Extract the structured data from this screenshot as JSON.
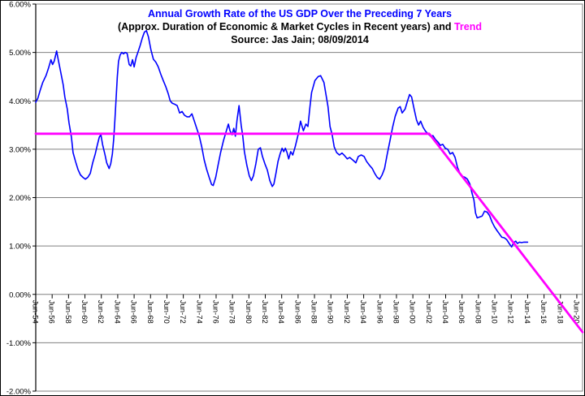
{
  "chart_data": {
    "type": "line",
    "title": "Annual Growth Rate of the US GDP Over the Preceding 7 Years",
    "subtitle_prefix": "(Approx. Duration of Economic & Market Cycles in Recent years) and ",
    "subtitle_highlight": "Trend",
    "source_line": "Source: Jas Jain; 08/09/2014",
    "title_color": "#0000ff",
    "highlight_color": "#ff00ff",
    "grid_color": "#808080",
    "axis_color": "#000000",
    "background_color": "#ffffff",
    "xlabel": "",
    "ylabel": "",
    "xlim": [
      1954.45,
      2021.15
    ],
    "ylim": [
      -2,
      6
    ],
    "legend": "none",
    "grid": "horizontal",
    "y_ticks": [
      {
        "label": "6.00%",
        "value": 6
      },
      {
        "label": "5.00%",
        "value": 5
      },
      {
        "label": "4.00%",
        "value": 4
      },
      {
        "label": "3.00%",
        "value": 3
      },
      {
        "label": "2.00%",
        "value": 2
      },
      {
        "label": "1.00%",
        "value": 1
      },
      {
        "label": "0.00%",
        "value": 0
      },
      {
        "label": "-1.00%",
        "value": -1
      },
      {
        "label": "-2.00%",
        "value": -2
      }
    ],
    "x_ticks": [
      {
        "label": "Jun-54",
        "year": 1954.45
      },
      {
        "label": "Jun-56",
        "year": 1956.45
      },
      {
        "label": "Jun-58",
        "year": 1958.45
      },
      {
        "label": "Jun-60",
        "year": 1960.45
      },
      {
        "label": "Jun-62",
        "year": 1962.45
      },
      {
        "label": "Jun-64",
        "year": 1964.45
      },
      {
        "label": "Jun-66",
        "year": 1966.45
      },
      {
        "label": "Jun-68",
        "year": 1968.45
      },
      {
        "label": "Jun-70",
        "year": 1970.45
      },
      {
        "label": "Jun-72",
        "year": 1972.45
      },
      {
        "label": "Jun-74",
        "year": 1974.45
      },
      {
        "label": "Jun-76",
        "year": 1976.45
      },
      {
        "label": "Jun-78",
        "year": 1978.45
      },
      {
        "label": "Jun-80",
        "year": 1980.45
      },
      {
        "label": "Jun-82",
        "year": 1982.45
      },
      {
        "label": "Jun-84",
        "year": 1984.45
      },
      {
        "label": "Jun-86",
        "year": 1986.45
      },
      {
        "label": "Jun-88",
        "year": 1988.45
      },
      {
        "label": "Jun-90",
        "year": 1990.45
      },
      {
        "label": "Jun-92",
        "year": 1992.45
      },
      {
        "label": "Jun-94",
        "year": 1994.45
      },
      {
        "label": "Jun-96",
        "year": 1996.45
      },
      {
        "label": "Jun-98",
        "year": 1998.45
      },
      {
        "label": "Jun-00",
        "year": 2000.45
      },
      {
        "label": "Jun-02",
        "year": 2002.45
      },
      {
        "label": "Jun-04",
        "year": 2004.45
      },
      {
        "label": "Jun-06",
        "year": 2006.45
      },
      {
        "label": "Jun-08",
        "year": 2008.45
      },
      {
        "label": "Jun-10",
        "year": 2010.45
      },
      {
        "label": "Jun-12",
        "year": 2012.45
      },
      {
        "label": "Jun-14",
        "year": 2014.45
      },
      {
        "label": "Jun-16",
        "year": 2016.45
      },
      {
        "label": "Jun-18",
        "year": 2018.45
      },
      {
        "label": "Jun-20",
        "year": 2020.45
      }
    ],
    "series": [
      {
        "name": "gdp-growth",
        "label": "Annual Growth Rate of the US GDP Over the Preceding 7 Years",
        "color": "#0000ff",
        "width": 1.6,
        "points": [
          [
            1954.45,
            3.97
          ],
          [
            1954.7,
            4.05
          ],
          [
            1955.0,
            4.22
          ],
          [
            1955.3,
            4.38
          ],
          [
            1955.7,
            4.52
          ],
          [
            1956.0,
            4.67
          ],
          [
            1956.3,
            4.85
          ],
          [
            1956.5,
            4.75
          ],
          [
            1956.7,
            4.82
          ],
          [
            1957.0,
            5.03
          ],
          [
            1957.2,
            4.85
          ],
          [
            1957.45,
            4.63
          ],
          [
            1957.8,
            4.33
          ],
          [
            1958.0,
            4.08
          ],
          [
            1958.3,
            3.83
          ],
          [
            1958.5,
            3.55
          ],
          [
            1958.8,
            3.25
          ],
          [
            1959.0,
            2.93
          ],
          [
            1959.3,
            2.75
          ],
          [
            1959.6,
            2.58
          ],
          [
            1959.9,
            2.47
          ],
          [
            1960.2,
            2.42
          ],
          [
            1960.5,
            2.38
          ],
          [
            1960.8,
            2.42
          ],
          [
            1961.1,
            2.5
          ],
          [
            1961.4,
            2.72
          ],
          [
            1961.7,
            2.9
          ],
          [
            1961.95,
            3.08
          ],
          [
            1962.2,
            3.25
          ],
          [
            1962.4,
            3.3
          ],
          [
            1962.6,
            3.1
          ],
          [
            1962.9,
            2.88
          ],
          [
            1963.1,
            2.72
          ],
          [
            1963.4,
            2.6
          ],
          [
            1963.6,
            2.7
          ],
          [
            1963.8,
            2.9
          ],
          [
            1963.95,
            3.2
          ],
          [
            1964.1,
            3.6
          ],
          [
            1964.25,
            4.05
          ],
          [
            1964.4,
            4.5
          ],
          [
            1964.55,
            4.82
          ],
          [
            1964.75,
            4.95
          ],
          [
            1964.95,
            5.0
          ],
          [
            1965.15,
            4.97
          ],
          [
            1965.35,
            5.0
          ],
          [
            1965.6,
            4.98
          ],
          [
            1965.85,
            4.75
          ],
          [
            1966.05,
            4.72
          ],
          [
            1966.25,
            4.85
          ],
          [
            1966.45,
            4.7
          ],
          [
            1966.7,
            4.9
          ],
          [
            1966.95,
            5.02
          ],
          [
            1967.2,
            5.15
          ],
          [
            1967.45,
            5.3
          ],
          [
            1967.7,
            5.42
          ],
          [
            1967.95,
            5.45
          ],
          [
            1968.2,
            5.32
          ],
          [
            1968.5,
            5.05
          ],
          [
            1968.8,
            4.86
          ],
          [
            1969.1,
            4.8
          ],
          [
            1969.4,
            4.7
          ],
          [
            1969.7,
            4.55
          ],
          [
            1970.0,
            4.42
          ],
          [
            1970.3,
            4.3
          ],
          [
            1970.6,
            4.15
          ],
          [
            1970.85,
            4.0
          ],
          [
            1971.1,
            3.95
          ],
          [
            1971.4,
            3.93
          ],
          [
            1971.7,
            3.9
          ],
          [
            1972.0,
            3.75
          ],
          [
            1972.3,
            3.78
          ],
          [
            1972.6,
            3.7
          ],
          [
            1972.9,
            3.67
          ],
          [
            1973.2,
            3.67
          ],
          [
            1973.5,
            3.73
          ],
          [
            1973.8,
            3.58
          ],
          [
            1974.1,
            3.42
          ],
          [
            1974.4,
            3.27
          ],
          [
            1974.7,
            3.05
          ],
          [
            1975.0,
            2.78
          ],
          [
            1975.3,
            2.58
          ],
          [
            1975.6,
            2.42
          ],
          [
            1975.9,
            2.27
          ],
          [
            1976.1,
            2.25
          ],
          [
            1976.4,
            2.42
          ],
          [
            1976.7,
            2.68
          ],
          [
            1977.0,
            2.93
          ],
          [
            1977.35,
            3.18
          ],
          [
            1977.7,
            3.38
          ],
          [
            1977.95,
            3.52
          ],
          [
            1978.15,
            3.38
          ],
          [
            1978.4,
            3.3
          ],
          [
            1978.6,
            3.43
          ],
          [
            1978.8,
            3.27
          ],
          [
            1979.0,
            3.6
          ],
          [
            1979.25,
            3.9
          ],
          [
            1979.5,
            3.5
          ],
          [
            1979.7,
            3.27
          ],
          [
            1979.9,
            2.95
          ],
          [
            1980.2,
            2.67
          ],
          [
            1980.5,
            2.45
          ],
          [
            1980.75,
            2.35
          ],
          [
            1981.0,
            2.45
          ],
          [
            1981.3,
            2.7
          ],
          [
            1981.6,
            3.0
          ],
          [
            1981.85,
            3.03
          ],
          [
            1982.1,
            2.85
          ],
          [
            1982.4,
            2.7
          ],
          [
            1982.7,
            2.57
          ],
          [
            1983.0,
            2.35
          ],
          [
            1983.3,
            2.23
          ],
          [
            1983.5,
            2.28
          ],
          [
            1983.75,
            2.5
          ],
          [
            1984.0,
            2.75
          ],
          [
            1984.25,
            2.9
          ],
          [
            1984.5,
            3.02
          ],
          [
            1984.7,
            2.95
          ],
          [
            1984.9,
            3.02
          ],
          [
            1985.1,
            2.93
          ],
          [
            1985.3,
            2.8
          ],
          [
            1985.55,
            2.95
          ],
          [
            1985.8,
            2.88
          ],
          [
            1986.1,
            3.05
          ],
          [
            1986.45,
            3.3
          ],
          [
            1986.75,
            3.58
          ],
          [
            1987.1,
            3.38
          ],
          [
            1987.4,
            3.52
          ],
          [
            1987.65,
            3.47
          ],
          [
            1987.9,
            3.88
          ],
          [
            1988.1,
            4.17
          ],
          [
            1988.5,
            4.42
          ],
          [
            1988.9,
            4.5
          ],
          [
            1989.2,
            4.52
          ],
          [
            1989.6,
            4.38
          ],
          [
            1989.9,
            4.08
          ],
          [
            1990.1,
            3.88
          ],
          [
            1990.35,
            3.47
          ],
          [
            1990.6,
            3.3
          ],
          [
            1990.85,
            3.05
          ],
          [
            1991.15,
            2.93
          ],
          [
            1991.5,
            2.88
          ],
          [
            1991.8,
            2.92
          ],
          [
            1992.1,
            2.87
          ],
          [
            1992.45,
            2.8
          ],
          [
            1992.75,
            2.83
          ],
          [
            1993.1,
            2.78
          ],
          [
            1993.5,
            2.72
          ],
          [
            1993.8,
            2.85
          ],
          [
            1994.15,
            2.88
          ],
          [
            1994.5,
            2.85
          ],
          [
            1994.8,
            2.75
          ],
          [
            1995.15,
            2.67
          ],
          [
            1995.5,
            2.6
          ],
          [
            1995.8,
            2.5
          ],
          [
            1996.1,
            2.42
          ],
          [
            1996.4,
            2.38
          ],
          [
            1996.7,
            2.47
          ],
          [
            1997.0,
            2.6
          ],
          [
            1997.3,
            2.88
          ],
          [
            1997.65,
            3.17
          ],
          [
            1998.0,
            3.47
          ],
          [
            1998.3,
            3.68
          ],
          [
            1998.65,
            3.85
          ],
          [
            1998.9,
            3.88
          ],
          [
            1999.15,
            3.75
          ],
          [
            1999.5,
            3.83
          ],
          [
            1999.8,
            4.0
          ],
          [
            2000.05,
            4.13
          ],
          [
            2000.3,
            4.08
          ],
          [
            2000.6,
            3.83
          ],
          [
            2000.9,
            3.6
          ],
          [
            2001.15,
            3.5
          ],
          [
            2001.4,
            3.58
          ],
          [
            2001.7,
            3.45
          ],
          [
            2002.0,
            3.37
          ],
          [
            2002.3,
            3.32
          ],
          [
            2002.6,
            3.27
          ],
          [
            2002.9,
            3.28
          ],
          [
            2003.2,
            3.2
          ],
          [
            2003.5,
            3.15
          ],
          [
            2003.8,
            3.08
          ],
          [
            2004.1,
            3.1
          ],
          [
            2004.4,
            3.02
          ],
          [
            2004.7,
            3.0
          ],
          [
            2005.0,
            2.9
          ],
          [
            2005.3,
            2.93
          ],
          [
            2005.6,
            2.83
          ],
          [
            2005.9,
            2.62
          ],
          [
            2006.2,
            2.5
          ],
          [
            2006.5,
            2.44
          ],
          [
            2006.8,
            2.42
          ],
          [
            2007.1,
            2.38
          ],
          [
            2007.4,
            2.28
          ],
          [
            2007.65,
            2.1
          ],
          [
            2007.9,
            1.95
          ],
          [
            2008.1,
            1.68
          ],
          [
            2008.3,
            1.58
          ],
          [
            2008.6,
            1.6
          ],
          [
            2008.9,
            1.62
          ],
          [
            2009.2,
            1.72
          ],
          [
            2009.5,
            1.7
          ],
          [
            2009.8,
            1.63
          ],
          [
            2010.1,
            1.5
          ],
          [
            2010.4,
            1.4
          ],
          [
            2010.7,
            1.32
          ],
          [
            2011.0,
            1.25
          ],
          [
            2011.3,
            1.18
          ],
          [
            2011.6,
            1.17
          ],
          [
            2011.9,
            1.13
          ],
          [
            2012.2,
            1.05
          ],
          [
            2012.5,
            0.98
          ],
          [
            2012.75,
            1.07
          ],
          [
            2013.0,
            1.1
          ],
          [
            2013.2,
            1.05
          ],
          [
            2013.45,
            1.08
          ],
          [
            2013.7,
            1.07
          ],
          [
            2014.0,
            1.08
          ],
          [
            2014.45,
            1.08
          ]
        ]
      },
      {
        "name": "trend",
        "label": "Trend",
        "color": "#ff00ff",
        "width": 2.8,
        "points": [
          [
            1954.45,
            3.32
          ],
          [
            2002.45,
            3.32
          ],
          [
            2021.15,
            -0.78
          ]
        ]
      }
    ]
  }
}
